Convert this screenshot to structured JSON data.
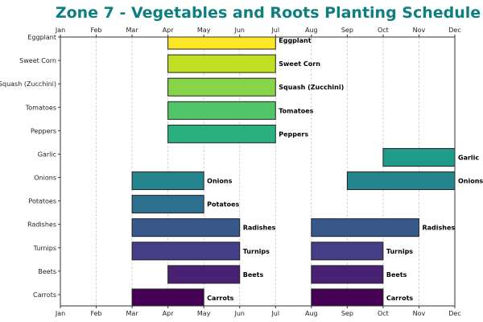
{
  "chart_data": {
    "type": "bar",
    "subtype": "gantt",
    "title": "Zone 7 - Vegetables and Roots Planting Schedule",
    "title_color": "#0e7f7f",
    "x_ticks": [
      "Jan",
      "Feb",
      "Mar",
      "Apr",
      "May",
      "Jun",
      "Jul",
      "Aug",
      "Sep",
      "Oct",
      "Nov",
      "Dec"
    ],
    "xlim": [
      0,
      11
    ],
    "grid": "vertical-dashed",
    "categories": [
      "Eggplant",
      "Sweet Corn",
      "Squash (Zucchini)",
      "Tomatoes",
      "Peppers",
      "Garlic",
      "Onions",
      "Potatoes",
      "Radishes",
      "Turnips",
      "Beets",
      "Carrots"
    ],
    "tasks": [
      {
        "name": "Eggplant",
        "color": "#fde725",
        "periods": [
          [
            3,
            6
          ]
        ]
      },
      {
        "name": "Sweet Corn",
        "color": "#c2df23",
        "periods": [
          [
            3,
            6
          ]
        ]
      },
      {
        "name": "Squash (Zucchini)",
        "color": "#86d549",
        "periods": [
          [
            3,
            6
          ]
        ]
      },
      {
        "name": "Tomatoes",
        "color": "#52c569",
        "periods": [
          [
            3,
            6
          ]
        ]
      },
      {
        "name": "Peppers",
        "color": "#2ab07f",
        "periods": [
          [
            3,
            6
          ]
        ]
      },
      {
        "name": "Garlic",
        "color": "#1e9b8a",
        "periods": [
          [
            9,
            11
          ]
        ]
      },
      {
        "name": "Onions",
        "color": "#25858e",
        "periods": [
          [
            2,
            4
          ],
          [
            8,
            11
          ]
        ]
      },
      {
        "name": "Potatoes",
        "color": "#2d708e",
        "periods": [
          [
            2,
            4
          ]
        ]
      },
      {
        "name": "Radishes",
        "color": "#38588c",
        "periods": [
          [
            2,
            5
          ],
          [
            7,
            10
          ]
        ]
      },
      {
        "name": "Turnips",
        "color": "#433e85",
        "periods": [
          [
            2,
            5
          ],
          [
            7,
            9
          ]
        ]
      },
      {
        "name": "Beets",
        "color": "#482173",
        "periods": [
          [
            3,
            5
          ],
          [
            7,
            9
          ]
        ]
      },
      {
        "name": "Carrots",
        "color": "#440154",
        "periods": [
          [
            2,
            4
          ],
          [
            7,
            9
          ]
        ]
      }
    ]
  }
}
